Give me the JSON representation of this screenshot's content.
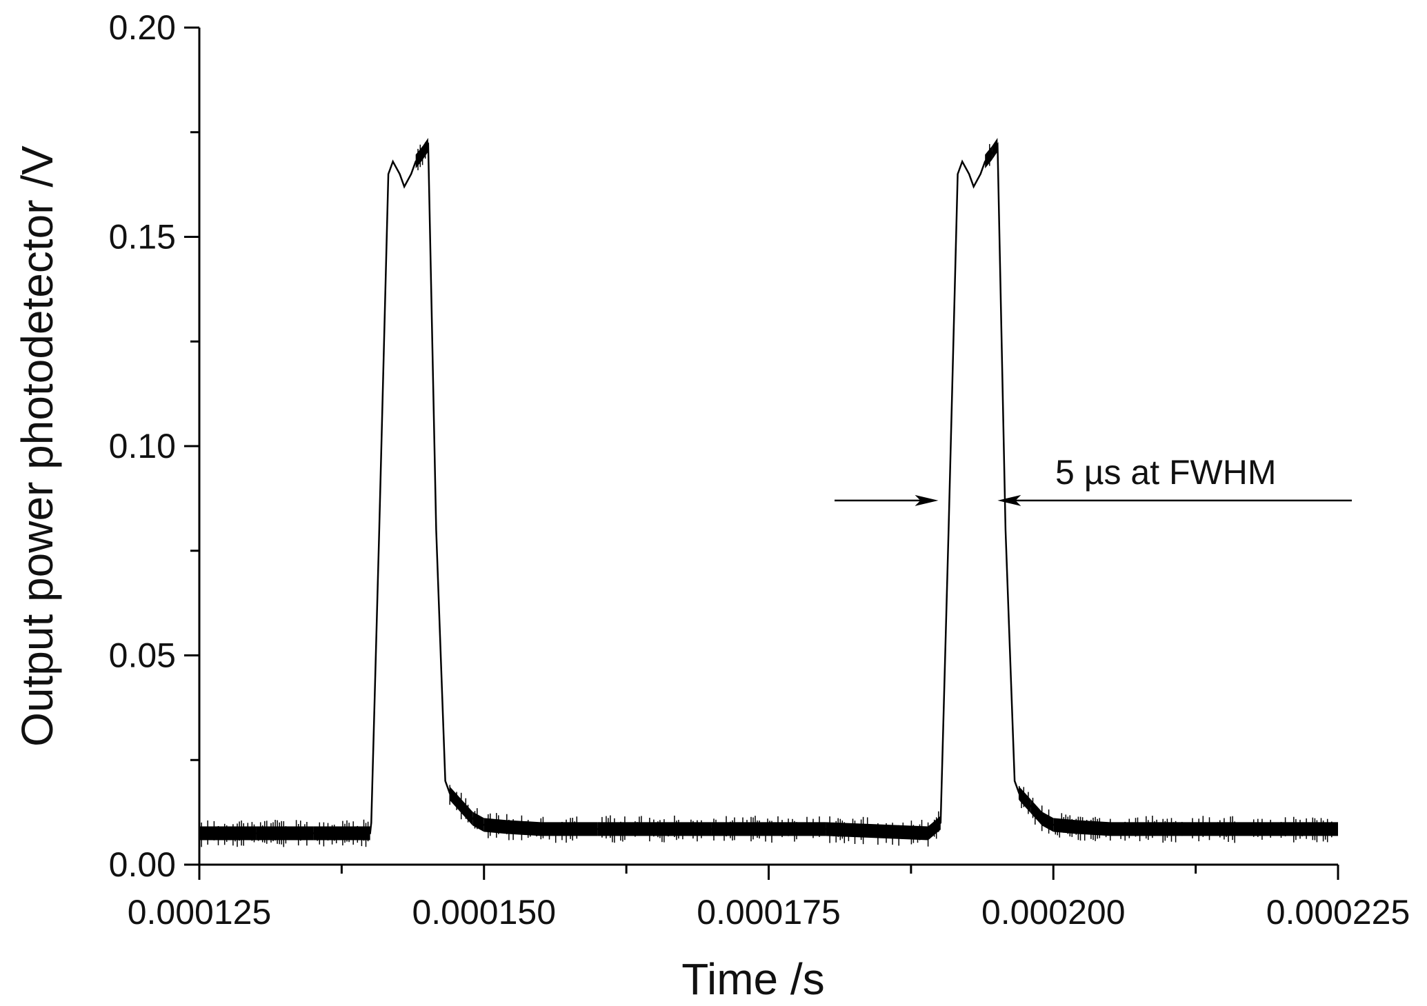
{
  "chart_data": {
    "type": "line",
    "title": "",
    "xlabel": "Time /s",
    "ylabel": "Output power photodetector /V",
    "xlim": [
      0.000125,
      0.000225
    ],
    "ylim": [
      0.0,
      0.2
    ],
    "x_ticks": [
      "0.000125",
      "0.000150",
      "0.000175",
      "0.000200",
      "0.000225"
    ],
    "y_ticks": [
      "0.00",
      "0.05",
      "0.10",
      "0.15",
      "0.20"
    ],
    "grid": false,
    "legend": "none",
    "series": [
      {
        "color": "#000000",
        "x": [
          0.000125,
          0.00013,
          0.000135,
          0.00014,
          0.0001401,
          0.0001408,
          0.0001416,
          0.000142,
          0.0001426,
          0.000143,
          0.0001436,
          0.000144,
          0.0001446,
          0.0001451,
          0.0001458,
          0.0001466,
          0.000147,
          0.000148,
          0.000149,
          0.00015,
          0.000152,
          0.000155,
          0.00016,
          0.00017,
          0.00018,
          0.000189,
          0.0001901,
          0.0001908,
          0.0001916,
          0.000192,
          0.0001926,
          0.000193,
          0.0001936,
          0.000194,
          0.0001946,
          0.0001951,
          0.0001958,
          0.0001966,
          0.000197,
          0.000198,
          0.000199,
          0.0002,
          0.000202,
          0.000205,
          0.00021,
          0.000215,
          0.00022,
          0.000225
        ],
        "y": [
          0.0075,
          0.0075,
          0.0075,
          0.0075,
          0.01,
          0.08,
          0.165,
          0.168,
          0.165,
          0.162,
          0.165,
          0.168,
          0.17,
          0.172,
          0.08,
          0.02,
          0.017,
          0.014,
          0.011,
          0.0095,
          0.009,
          0.0085,
          0.0085,
          0.0085,
          0.0085,
          0.0075,
          0.01,
          0.08,
          0.165,
          0.168,
          0.165,
          0.162,
          0.165,
          0.168,
          0.17,
          0.172,
          0.08,
          0.02,
          0.017,
          0.014,
          0.011,
          0.0095,
          0.009,
          0.0085,
          0.0085,
          0.0085,
          0.0085,
          0.0085
        ]
      }
    ],
    "annotation": {
      "text": "5 µs at FWHM",
      "arrow_left_tip_x": 0.0001899,
      "arrow_right_tip_x": 0.0001951,
      "y": 0.087
    }
  }
}
